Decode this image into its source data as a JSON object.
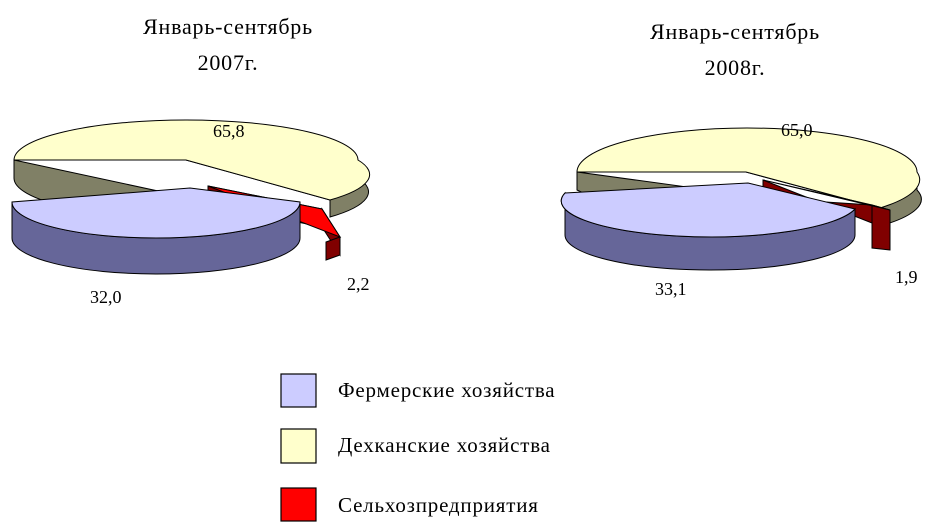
{
  "chart_data": [
    {
      "type": "pie",
      "style": "3d-exploded",
      "title_line1": "Январь-сентябрь",
      "title_line2": "2007г.",
      "slices": [
        {
          "name": "Фермерские хозяйства",
          "value": 32.0,
          "label": "32,0"
        },
        {
          "name": "Дехканские хозяйства",
          "value": 65.8,
          "label": "65,8"
        },
        {
          "name": "Сельхозпредприятия",
          "value": 2.2,
          "label": "2,2"
        }
      ]
    },
    {
      "type": "pie",
      "style": "3d-exploded",
      "title_line1": "Январь-сентябрь",
      "title_line2": "2008г.",
      "slices": [
        {
          "name": "Фермерские хозяйства",
          "value": 33.1,
          "label": "33,1"
        },
        {
          "name": "Дехканские хозяйства",
          "value": 65.0,
          "label": "65,0"
        },
        {
          "name": "Сельхозпредприятия",
          "value": 1.9,
          "label": "1,9"
        }
      ]
    }
  ],
  "legend": {
    "placement": "bottom-center",
    "items": [
      {
        "label": "Фермерские хозяйства",
        "color": "#ccccff"
      },
      {
        "label": "Дехканские хозяйства",
        "color": "#ffffcc"
      },
      {
        "label": "Сельхозпредприятия",
        "color": "#ff0000"
      }
    ]
  },
  "colors": {
    "farmer_top": "#ccccff",
    "farmer_side": "#666699",
    "dekhkan_top": "#ffffcc",
    "dekhkan_side": "#808066",
    "agri_top": "#ff0000",
    "agri_side": "#800000"
  }
}
